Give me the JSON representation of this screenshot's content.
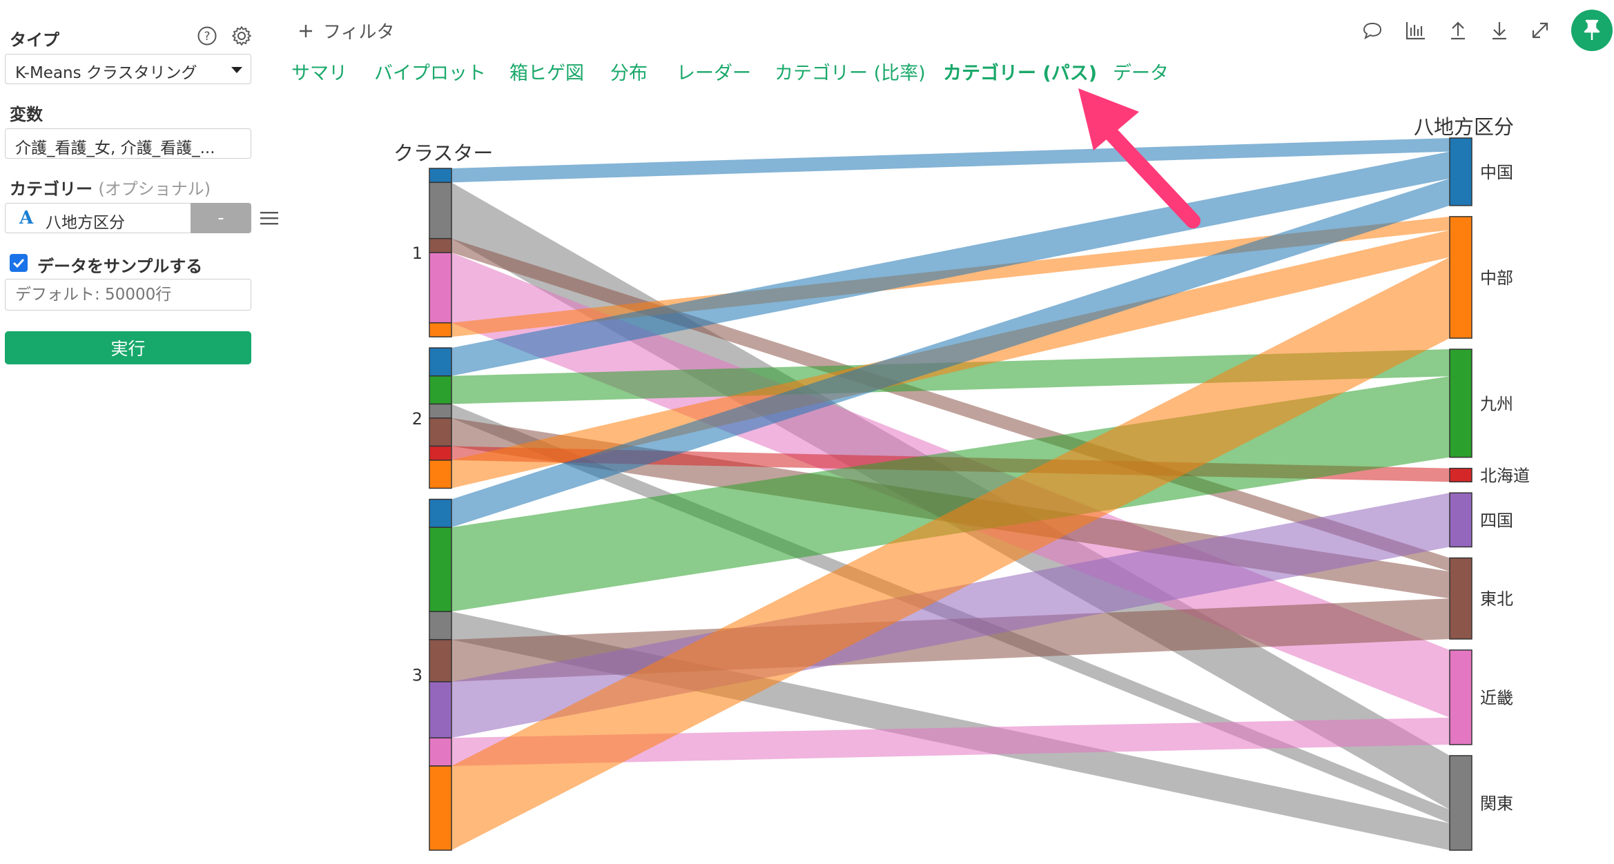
{
  "sidebar": {
    "type_label": "タイプ",
    "type_value": "K-Means クラスタリング",
    "variables_label": "変数",
    "variables_value": "介護_看護_女, 介護_看護_...",
    "category_label": "カテゴリー",
    "category_optional": "(オプショナル)",
    "category_value": "八地方区分",
    "category_type_glyph": "A",
    "category_minus": "-",
    "sample_label": "データをサンプルする",
    "sample_checked": true,
    "sample_placeholder": "デフォルト: 50000行",
    "run_label": "実行"
  },
  "toolbar": {
    "filter_label": "フィルタ",
    "icons": [
      "comment-icon",
      "chart-icon",
      "upload-icon",
      "download-icon",
      "expand-icon",
      "pin-icon"
    ]
  },
  "tabs": [
    {
      "label": "サマリ",
      "active": false
    },
    {
      "label": "バイプロット",
      "active": false
    },
    {
      "label": "箱ヒゲ図",
      "active": false
    },
    {
      "label": "分布",
      "active": false
    },
    {
      "label": "レーダー",
      "active": false
    },
    {
      "label": "カテゴリー (比率)",
      "active": false
    },
    {
      "label": "カテゴリー (パス)",
      "active": true
    },
    {
      "label": "データ",
      "active": false
    }
  ],
  "colors": {
    "accent": "#17a86b",
    "arrow": "#ff3a78",
    "中国": "#1f77b4",
    "中部": "#ff7f0e",
    "九州": "#2ca02c",
    "北海道": "#d62728",
    "四国": "#9467bd",
    "東北": "#8c564b",
    "近畿": "#e377c2",
    "関東": "#7f7f7f"
  },
  "chart_data": {
    "type": "parallel-sets",
    "left_axis_title": "クラスター",
    "right_axis_title": "八地方区分",
    "clusters": [
      "1",
      "2",
      "3"
    ],
    "regions": [
      "中国",
      "中部",
      "九州",
      "北海道",
      "四国",
      "東北",
      "近畿",
      "関東"
    ],
    "flows": [
      {
        "cluster": "1",
        "region": "中国",
        "value": 1
      },
      {
        "cluster": "1",
        "region": "関東",
        "value": 4
      },
      {
        "cluster": "1",
        "region": "東北",
        "value": 1
      },
      {
        "cluster": "1",
        "region": "近畿",
        "value": 5
      },
      {
        "cluster": "1",
        "region": "中部",
        "value": 1
      },
      {
        "cluster": "2",
        "region": "中国",
        "value": 2
      },
      {
        "cluster": "2",
        "region": "九州",
        "value": 2
      },
      {
        "cluster": "2",
        "region": "関東",
        "value": 1
      },
      {
        "cluster": "2",
        "region": "東北",
        "value": 2
      },
      {
        "cluster": "2",
        "region": "北海道",
        "value": 1
      },
      {
        "cluster": "2",
        "region": "中部",
        "value": 2
      },
      {
        "cluster": "3",
        "region": "中国",
        "value": 2
      },
      {
        "cluster": "3",
        "region": "九州",
        "value": 6
      },
      {
        "cluster": "3",
        "region": "関東",
        "value": 2
      },
      {
        "cluster": "3",
        "region": "東北",
        "value": 3
      },
      {
        "cluster": "3",
        "region": "四国",
        "value": 4
      },
      {
        "cluster": "3",
        "region": "近畿",
        "value": 2
      },
      {
        "cluster": "3",
        "region": "中部",
        "value": 6
      }
    ]
  }
}
